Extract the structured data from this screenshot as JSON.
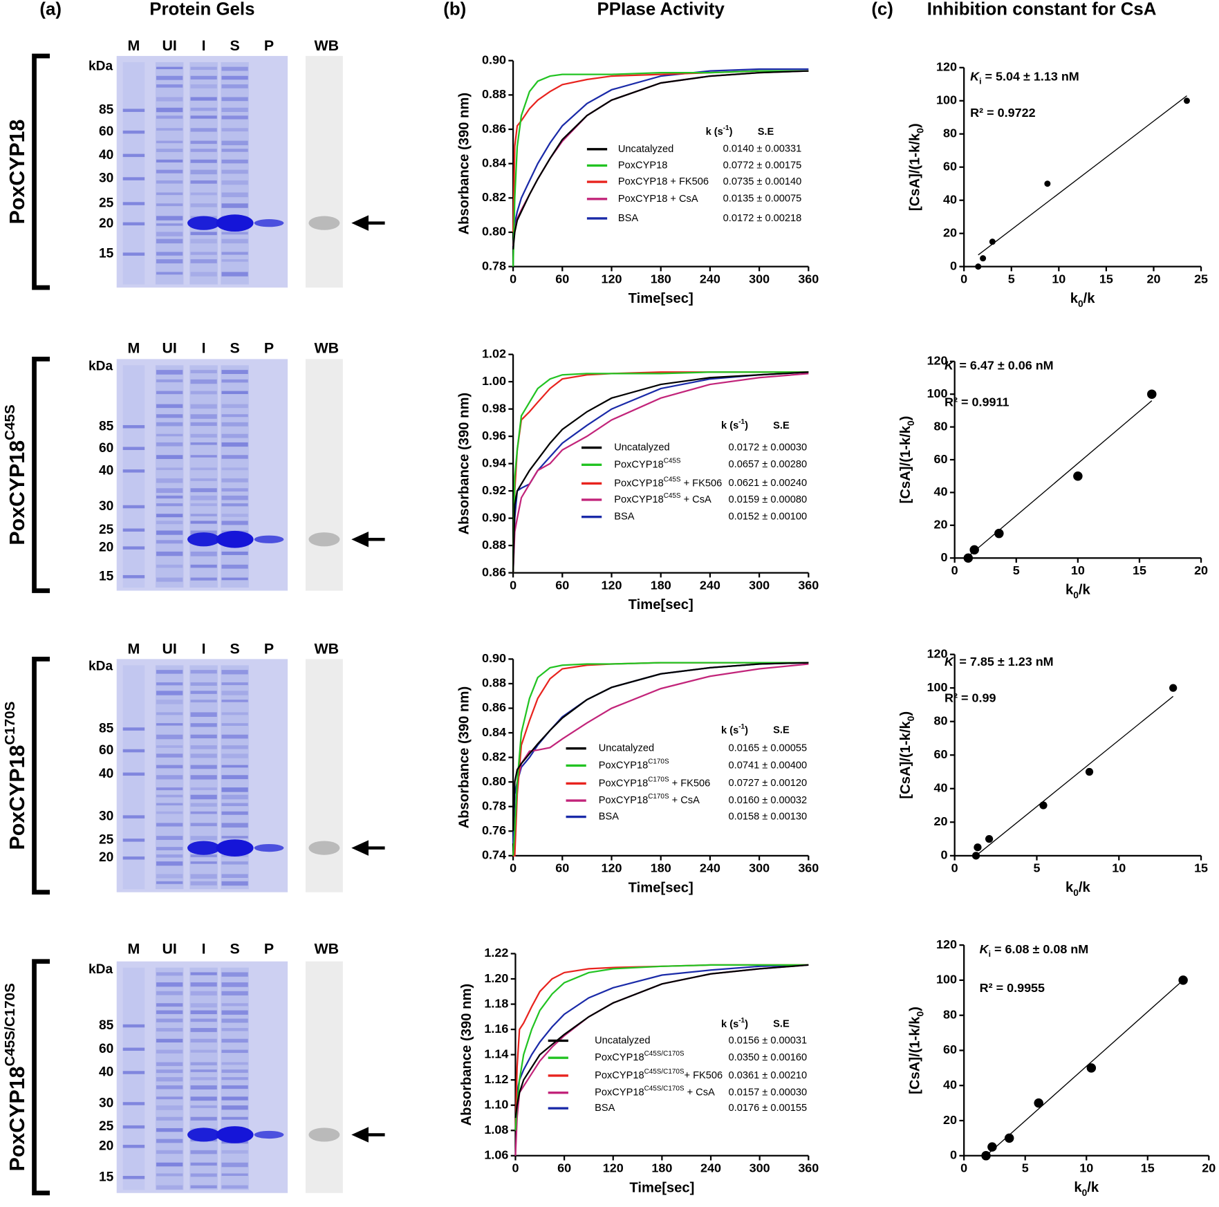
{
  "headers": {
    "a_label": "(a)",
    "a_title": "Protein Gels",
    "b_label": "(b)",
    "b_title": "PPIase Activity",
    "c_label": "(c)",
    "c_title": "Inhibition constant for CsA"
  },
  "gels": [
    {
      "name": [
        "PoxCYP18"
      ],
      "lanes": [
        "M",
        "UI",
        "I",
        "S",
        "P",
        "WB"
      ],
      "unit": "kDa",
      "markers": [
        85,
        60,
        40,
        30,
        25,
        20,
        15
      ]
    },
    {
      "name": [
        "PoxCYP18",
        {
          "sup": "C45S"
        }
      ],
      "lanes": [
        "M",
        "UI",
        "I",
        "S",
        "P",
        "WB"
      ],
      "unit": "kDa",
      "markers": [
        85,
        60,
        40,
        30,
        25,
        20,
        15
      ]
    },
    {
      "name": [
        "PoxCYP18",
        {
          "sup": "C170S"
        }
      ],
      "lanes": [
        "M",
        "UI",
        "I",
        "S",
        "P",
        "WB"
      ],
      "unit": "kDa",
      "markers": [
        85,
        60,
        40,
        30,
        25,
        20
      ]
    },
    {
      "name": [
        "PoxCYP18",
        {
          "sup": "C45S/C170S"
        }
      ],
      "lanes": [
        "M",
        "UI",
        "I",
        "S",
        "P",
        "WB"
      ],
      "unit": "kDa",
      "markers": [
        85,
        60,
        40,
        30,
        25,
        20,
        15
      ]
    }
  ],
  "chart_data": [
    {
      "type": "line",
      "xlabel": "Time[sec]",
      "ylabel": "Absorbance (390 nm)",
      "x": [
        0,
        2,
        5,
        10,
        20,
        30,
        45,
        60,
        90,
        120,
        180,
        240,
        300,
        360
      ],
      "xlim": [
        0,
        360
      ],
      "xticks": [
        0,
        60,
        120,
        180,
        240,
        300,
        360
      ],
      "ylim": [
        0.78,
        0.9
      ],
      "yticks": [
        0.78,
        {
          "value": 0.8,
          "label": "0.80"
        },
        0.82,
        0.84,
        0.86,
        0.88,
        {
          "value": 0.9,
          "label": "0.90"
        }
      ],
      "legend_header": [
        [
          "k (s",
          {
            "sup": "-1"
          },
          ")"
        ],
        "S.E"
      ],
      "series": [
        {
          "name": [
            "Uncatalyzed"
          ],
          "color": "#000000",
          "annotation": "0.0140 ± 0.00331",
          "values": [
            0.79,
            0.8,
            0.807,
            0.812,
            0.822,
            0.831,
            0.843,
            0.854,
            0.868,
            0.877,
            0.887,
            0.891,
            0.893,
            0.894
          ]
        },
        {
          "name": [
            "PoxCYP18"
          ],
          "color": "#22c322",
          "annotation": "0.0772 ± 0.00175",
          "values": [
            0.78,
            0.82,
            0.85,
            0.868,
            0.882,
            0.888,
            0.891,
            0.892,
            0.892,
            0.892,
            0.893,
            0.893,
            0.894,
            0.894
          ]
        },
        {
          "name": [
            "PoxCYP18 + FK506"
          ],
          "color": "#e8231e",
          "annotation": "0.0735 ± 0.00140",
          "values": [
            0.8,
            0.85,
            0.862,
            0.865,
            0.872,
            0.877,
            0.882,
            0.886,
            0.889,
            0.891,
            0.892,
            0.893,
            0.894,
            0.894
          ]
        },
        {
          "name": [
            "PoxCYP18 + CsA"
          ],
          "color": "#c2247a",
          "annotation": "0.0135 ± 0.00075",
          "values": [
            0.792,
            0.801,
            0.808,
            0.813,
            0.822,
            0.831,
            0.843,
            0.853,
            0.868,
            0.877,
            0.887,
            0.891,
            0.893,
            0.894
          ]
        },
        {
          "name": [
            "BSA"
          ],
          "color": "#1a2aa8",
          "annotation": "0.0172 ± 0.00218",
          "values": [
            0.79,
            0.805,
            0.812,
            0.82,
            0.83,
            0.84,
            0.852,
            0.862,
            0.875,
            0.883,
            0.891,
            0.894,
            0.895,
            0.895
          ]
        }
      ]
    },
    {
      "type": "line",
      "xlabel": "Time[sec]",
      "ylabel": "Absorbance (390 nm)",
      "x": [
        0,
        2,
        5,
        10,
        20,
        30,
        45,
        60,
        90,
        120,
        180,
        240,
        300,
        360
      ],
      "xlim": [
        0,
        360
      ],
      "xticks": [
        0,
        60,
        120,
        180,
        240,
        300,
        360
      ],
      "ylim": [
        0.86,
        1.02
      ],
      "yticks": [
        0.86,
        0.88,
        {
          "value": 0.9,
          "label": "0.90"
        },
        0.92,
        0.94,
        0.96,
        0.98,
        {
          "value": 1,
          "label": "1.00"
        },
        1.02
      ],
      "legend_header": [
        [
          "k (s",
          {
            "sup": "-1"
          },
          ")"
        ],
        "S.E"
      ],
      "series": [
        {
          "name": [
            "Uncatalyzed"
          ],
          "color": "#000000",
          "annotation": "0.0172 ± 0.00030",
          "values": [
            0.86,
            0.91,
            0.92,
            0.925,
            0.935,
            0.943,
            0.955,
            0.965,
            0.978,
            0.988,
            0.998,
            1.003,
            1.005,
            1.007
          ]
        },
        {
          "name": [
            "PoxCYP18",
            {
              "sup": "C45S"
            }
          ],
          "color": "#22c322",
          "annotation": "0.0657 ± 0.00280",
          "values": [
            0.86,
            0.93,
            0.95,
            0.975,
            0.985,
            0.995,
            1.002,
            1.005,
            1.006,
            1.006,
            1.006,
            1.007,
            1.007,
            1.007
          ]
        },
        {
          "name": [
            "PoxCYP18",
            {
              "sup": "C45S"
            },
            " + FK506"
          ],
          "color": "#e8231e",
          "annotation": "0.0621 ± 0.00240",
          "values": [
            0.86,
            0.92,
            0.95,
            0.972,
            0.978,
            0.985,
            0.995,
            1.002,
            1.005,
            1.006,
            1.007,
            1.007,
            1.007,
            1.007
          ]
        },
        {
          "name": [
            "PoxCYP18",
            {
              "sup": "C45S"
            },
            " + CsA"
          ],
          "color": "#c2247a",
          "annotation": "0.0159 ± 0.00080",
          "values": [
            0.86,
            0.89,
            0.9,
            0.915,
            0.925,
            0.935,
            0.94,
            0.95,
            0.96,
            0.972,
            0.988,
            0.998,
            1.003,
            1.006
          ]
        },
        {
          "name": [
            "BSA"
          ],
          "color": "#1a2aa8",
          "annotation": "0.0152 ± 0.00100",
          "values": [
            0.86,
            0.9,
            0.92,
            0.922,
            0.925,
            0.935,
            0.945,
            0.955,
            0.968,
            0.98,
            0.995,
            1.002,
            1.005,
            1.007
          ]
        }
      ]
    },
    {
      "type": "line",
      "xlabel": "Time[sec]",
      "ylabel": "Absorbance (390 nm)",
      "x": [
        0,
        2,
        5,
        10,
        20,
        30,
        45,
        60,
        90,
        120,
        180,
        240,
        300,
        360
      ],
      "xlim": [
        0,
        360
      ],
      "xticks": [
        0,
        60,
        120,
        180,
        240,
        300,
        360
      ],
      "ylim": [
        0.74,
        0.9
      ],
      "yticks": [
        0.74,
        0.76,
        0.78,
        {
          "value": 0.8,
          "label": "0.80"
        },
        0.82,
        0.84,
        0.86,
        0.88,
        {
          "value": 0.9,
          "label": "0.90"
        }
      ],
      "legend_header": [
        [
          "k (s",
          {
            "sup": "-1"
          },
          ")"
        ],
        "S.E"
      ],
      "series": [
        {
          "name": [
            "Uncatalyzed"
          ],
          "color": "#000000",
          "annotation": "0.0165 ± 0.00055",
          "values": [
            0.76,
            0.8,
            0.81,
            0.815,
            0.823,
            0.831,
            0.842,
            0.852,
            0.867,
            0.877,
            0.888,
            0.893,
            0.896,
            0.897
          ]
        },
        {
          "name": [
            "PoxCYP18",
            {
              "sup": "C170S"
            }
          ],
          "color": "#22c322",
          "annotation": "0.0741 ± 0.00400",
          "values": [
            0.74,
            0.76,
            0.8,
            0.84,
            0.868,
            0.885,
            0.893,
            0.895,
            0.896,
            0.896,
            0.897,
            0.897,
            0.897,
            0.897
          ]
        },
        {
          "name": [
            "PoxCYP18",
            {
              "sup": "C170S"
            },
            " + FK506"
          ],
          "color": "#e8231e",
          "annotation": "0.0727 ± 0.00120",
          "values": [
            0.74,
            0.74,
            0.79,
            0.83,
            0.85,
            0.868,
            0.884,
            0.892,
            0.895,
            0.896,
            0.897,
            0.897,
            0.897,
            0.897
          ]
        },
        {
          "name": [
            "PoxCYP18",
            {
              "sup": "C170S"
            },
            " + CsA"
          ],
          "color": "#c2247a",
          "annotation": "0.0160 ± 0.00032",
          "values": [
            0.74,
            0.76,
            0.8,
            0.815,
            0.825,
            0.826,
            0.828,
            0.835,
            0.848,
            0.86,
            0.876,
            0.886,
            0.892,
            0.896
          ]
        },
        {
          "name": [
            "BSA"
          ],
          "color": "#1a2aa8",
          "annotation": "0.0158 ± 0.00130",
          "values": [
            0.75,
            0.79,
            0.8,
            0.812,
            0.82,
            0.83,
            0.842,
            0.853,
            0.867,
            0.877,
            0.888,
            0.893,
            0.896,
            0.897
          ]
        }
      ]
    },
    {
      "type": "line",
      "xlabel": "Time[sec]",
      "ylabel": "Absorbance (390 nm)",
      "x": [
        0,
        2,
        5,
        10,
        20,
        30,
        45,
        60,
        90,
        120,
        180,
        240,
        300,
        360
      ],
      "xlim": [
        0,
        360
      ],
      "xticks": [
        0,
        60,
        120,
        180,
        240,
        300,
        360
      ],
      "ylim": [
        1.06,
        1.22
      ],
      "yticks": [
        1.06,
        1.08,
        {
          "value": 1.1,
          "label": "1.10"
        },
        1.12,
        1.14,
        1.16,
        1.18,
        {
          "value": 1.2,
          "label": "1.20"
        },
        1.22
      ],
      "legend_header": [
        [
          "k (s",
          {
            "sup": "-1"
          },
          ")"
        ],
        "S.E"
      ],
      "series": [
        {
          "name": [
            "Uncatalyzed"
          ],
          "color": "#000000",
          "annotation": "0.0156 ± 0.00031",
          "values": [
            1.09,
            1.1,
            1.11,
            1.12,
            1.13,
            1.14,
            1.148,
            1.156,
            1.17,
            1.181,
            1.196,
            1.204,
            1.208,
            1.211
          ]
        },
        {
          "name": [
            "PoxCYP18",
            {
              "sup": "C45S/C170S"
            }
          ],
          "color": "#22c322",
          "annotation": "0.0350 ± 0.00160",
          "values": [
            1.08,
            1.1,
            1.12,
            1.14,
            1.16,
            1.175,
            1.188,
            1.197,
            1.205,
            1.208,
            1.21,
            1.211,
            1.211,
            1.211
          ]
        },
        {
          "name": [
            "PoxCYP18",
            {
              "sup": "C45S/C170S"
            },
            "+ FK506"
          ],
          "color": "#e8231e",
          "annotation": "0.0361 ± 0.00210",
          "values": [
            1.08,
            1.13,
            1.16,
            1.165,
            1.178,
            1.19,
            1.2,
            1.205,
            1.208,
            1.209,
            1.21,
            1.211,
            1.211,
            1.211
          ]
        },
        {
          "name": [
            "PoxCYP18",
            {
              "sup": "C45S/C170S"
            },
            " + CsA"
          ],
          "color": "#c2247a",
          "annotation": "0.0157 ± 0.00030",
          "values": [
            1.06,
            1.09,
            1.11,
            1.115,
            1.125,
            1.135,
            1.146,
            1.155,
            1.17,
            1.181,
            1.196,
            1.204,
            1.208,
            1.211
          ]
        },
        {
          "name": [
            "BSA"
          ],
          "color": "#1a2aa8",
          "annotation": "0.0176 ± 0.00155",
          "values": [
            1.08,
            1.11,
            1.12,
            1.128,
            1.14,
            1.15,
            1.162,
            1.172,
            1.185,
            1.193,
            1.203,
            1.207,
            1.21,
            1.211
          ]
        }
      ]
    },
    {
      "type": "scatter",
      "xlabel": [
        "k",
        {
          "sub": "0"
        },
        "/k"
      ],
      "ylabel": [
        "[CsA]/(1-k/k",
        {
          "sub": "0"
        },
        ")"
      ],
      "xlim": [
        0,
        25
      ],
      "xticks": [
        0,
        5,
        10,
        15,
        20,
        25
      ],
      "ylim": [
        0,
        120
      ],
      "yticks": [
        0,
        20,
        40,
        60,
        80,
        100,
        120
      ],
      "annotations": [
        [
          {
            "i": "K"
          },
          {
            "sub": "i"
          },
          " = 5.04 ± 1.13 nM"
        ],
        [
          "R² = 0.9722"
        ]
      ],
      "series": [
        {
          "color": "#000000",
          "x": [
            1.5,
            2,
            3,
            8.8,
            23.5
          ],
          "values": [
            0,
            5,
            15,
            50,
            100
          ]
        }
      ],
      "fit": {
        "x": [
          1.5,
          23.5
        ],
        "y": [
          7,
          103
        ]
      }
    },
    {
      "type": "scatter",
      "xlabel": [
        "k",
        {
          "sub": "0"
        },
        "/k"
      ],
      "ylabel": [
        "[CsA]/(1-k/k",
        {
          "sub": "0"
        },
        ")"
      ],
      "xlim": [
        0,
        20
      ],
      "xticks": [
        0,
        5,
        10,
        15,
        20
      ],
      "ylim": [
        0,
        120
      ],
      "yticks": [
        0,
        20,
        40,
        60,
        80,
        100,
        120
      ],
      "annotations": [
        [
          {
            "i": "K"
          },
          {
            "sub": "i"
          },
          " = 6.47 ± 0.06 nM"
        ],
        [
          "R² = 0.9911"
        ]
      ],
      "series": [
        {
          "color": "#000000",
          "x": [
            1.1,
            1.6,
            3.6,
            10,
            16
          ],
          "values": [
            0,
            5,
            15,
            50,
            100
          ]
        }
      ],
      "fit": {
        "x": [
          1.1,
          16
        ],
        "y": [
          1,
          96
        ]
      }
    },
    {
      "type": "scatter",
      "xlabel": [
        "k",
        {
          "sub": "0"
        },
        "/k"
      ],
      "ylabel": [
        "[CsA]/(1-k/k",
        {
          "sub": "0"
        },
        ")"
      ],
      "xlim": [
        0,
        15
      ],
      "xticks": [
        0,
        5,
        10,
        15
      ],
      "ylim": [
        0,
        120
      ],
      "yticks": [
        0,
        20,
        40,
        60,
        80,
        100,
        120
      ],
      "annotations": [
        [
          {
            "i": "K"
          },
          {
            "sub": "i"
          },
          " = 7.85 ± 1.23 nM"
        ],
        [
          "R² = 0.99"
        ]
      ],
      "series": [
        {
          "color": "#000000",
          "x": [
            1.3,
            1.4,
            2.1,
            5.4,
            8.2,
            13.3
          ],
          "values": [
            0,
            5,
            10,
            30,
            50,
            100
          ]
        }
      ],
      "fit": {
        "x": [
          1.3,
          13.3
        ],
        "y": [
          0,
          95
        ]
      }
    },
    {
      "type": "scatter",
      "xlabel": [
        "k",
        {
          "sub": "0"
        },
        "/k"
      ],
      "ylabel": [
        "[CsA]/(1-k/k",
        {
          "sub": "0"
        },
        ")"
      ],
      "xlim": [
        0,
        20
      ],
      "xticks": [
        0,
        5,
        10,
        15,
        20
      ],
      "ylim": [
        0,
        120
      ],
      "yticks": [
        0,
        20,
        40,
        60,
        80,
        100,
        120
      ],
      "annotations": [
        [
          {
            "i": "K"
          },
          {
            "sub": "i"
          },
          " = 6.08 ± 0.08 nM"
        ],
        [
          "R² = 0.9955"
        ]
      ],
      "series": [
        {
          "color": "#000000",
          "x": [
            1.8,
            2.3,
            3.7,
            6.1,
            10.4,
            17.9
          ],
          "values": [
            0,
            5,
            10,
            30,
            50,
            100
          ]
        }
      ],
      "fit": {
        "x": [
          1.8,
          17.9
        ],
        "y": [
          0,
          100
        ]
      }
    }
  ]
}
